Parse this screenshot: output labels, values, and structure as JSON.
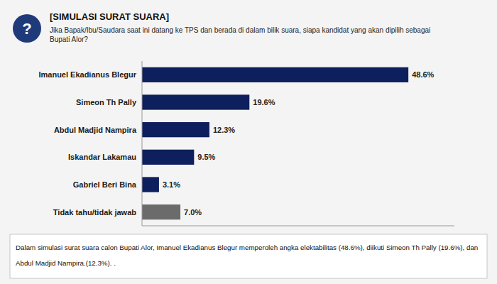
{
  "chart_data": {
    "type": "bar",
    "orientation": "horizontal",
    "title": "[SIMULASI SURAT SUARA]",
    "subtitle": "Jika Bapak/Ibu/Saudara saat ini datang ke TPS dan berada di dalam bilik suara, siapa kandidat yang akan dipilih sebagai\nBupati Alor?",
    "categories": [
      "Imanuel Ekadianus Blegur",
      "Simeon Th Pally",
      "Abdul Madjid Nampira",
      "Iskandar Lakamau",
      "Gabriel Beri Bina",
      "Tidak tahu/tidak jawab"
    ],
    "values": [
      48.6,
      19.6,
      12.3,
      9.5,
      3.1,
      7.0
    ],
    "value_labels": [
      "48.6%",
      "19.6%",
      "12.3%",
      "9.5%",
      "3.1%",
      "7.0%"
    ],
    "colors": [
      "#0d1f5c",
      "#0d1f5c",
      "#0d1f5c",
      "#0d1f5c",
      "#0d1f5c",
      "#6b6b6b"
    ],
    "xlim": [
      0,
      57
    ],
    "data_labels": true,
    "tick_labels": false,
    "grid": false,
    "annotations": [
      "?",
      "Dalam simulasi surat suara calon Bupati Alor, Imanuel Ekadianus Blegur memperoleh angka elektabilitas (48.6%), diikuti Simeon Th Pally (19.6%), dan",
      "Abdul Madjid Nampira.(12.3%). ."
    ]
  }
}
